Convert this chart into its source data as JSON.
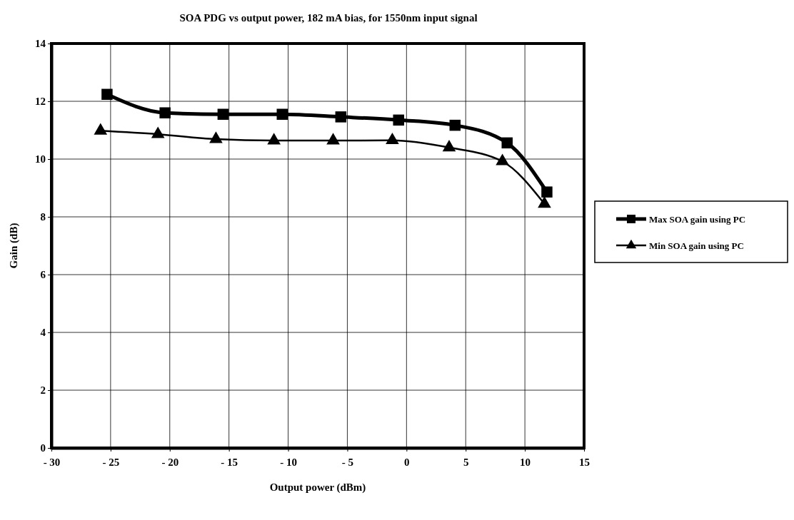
{
  "chart_data": {
    "type": "line",
    "title": "SOA PDG vs output power, 182 mA bias, for 1550nm input signal",
    "xlabel": "Output power (dBm)",
    "ylabel": "Gain (dB)",
    "xlim": [
      -30,
      15
    ],
    "xticks": [
      {
        "value": -30,
        "label": "- 30"
      },
      {
        "value": -25,
        "label": "- 25"
      },
      {
        "value": -20,
        "label": "- 20"
      },
      {
        "value": -15,
        "label": "- 15"
      },
      {
        "value": -10,
        "label": "- 10"
      },
      {
        "value": -5,
        "label": "- 5"
      },
      0,
      5,
      10,
      15
    ],
    "ylim": [
      0,
      14
    ],
    "yticks": [
      0,
      2,
      4,
      6,
      8,
      10,
      12,
      14
    ],
    "grid": true,
    "legend": "right",
    "series": [
      {
        "name": "Max SOA gain using PC",
        "color": "#000000",
        "marker": "square",
        "x": [
          -25.3,
          -20.4,
          -15.5,
          -10.5,
          -5.55,
          -0.67,
          4.1,
          8.5,
          11.86
        ],
        "values": [
          12.24,
          11.6,
          11.55,
          11.55,
          11.46,
          11.35,
          11.17,
          10.56,
          8.86
        ]
      },
      {
        "name": "Min SOA gain using PC",
        "color": "#000000",
        "marker": "triangle",
        "x": [
          -25.85,
          -21.0,
          -16.1,
          -11.2,
          -6.2,
          -1.2,
          3.6,
          8.1,
          11.65
        ],
        "values": [
          10.98,
          10.86,
          10.69,
          10.64,
          10.64,
          10.65,
          10.4,
          9.92,
          8.45
        ]
      }
    ]
  }
}
